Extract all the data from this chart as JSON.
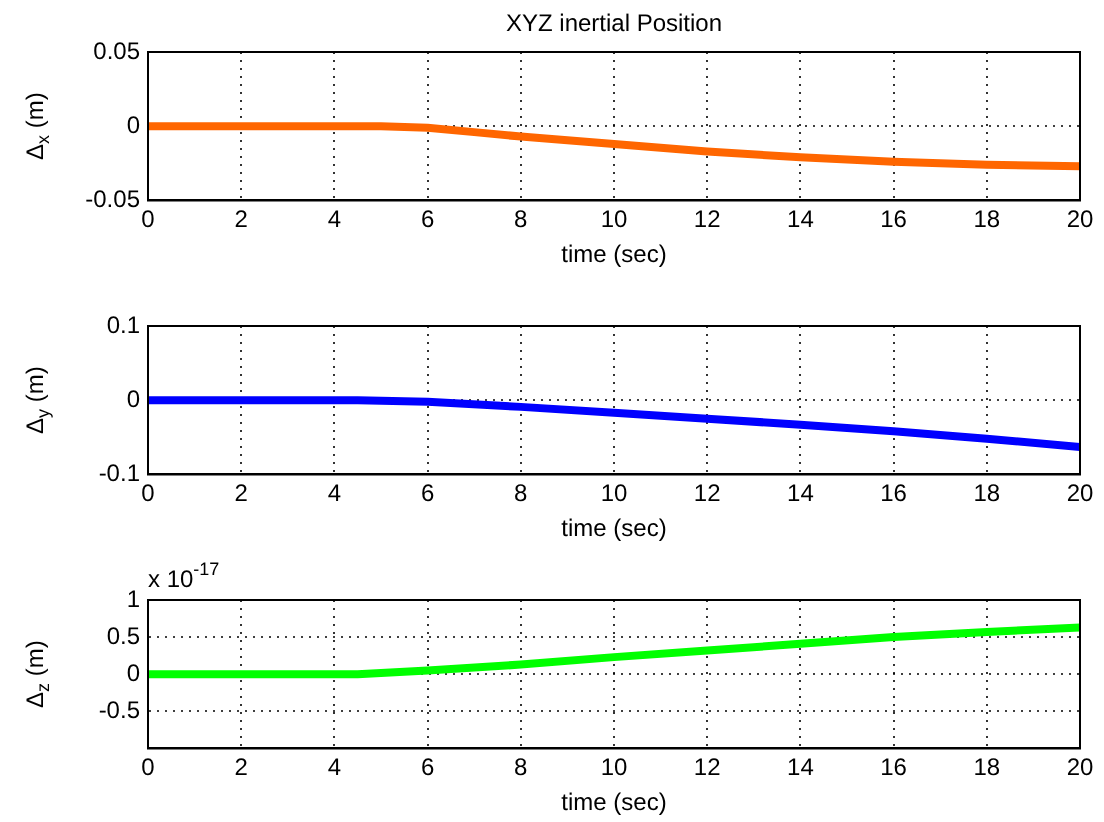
{
  "chart_data": [
    {
      "type": "line",
      "title": "XYZ inertial Position",
      "xlabel": "time (sec)",
      "ylabel": "Δ$_{x}$ (m)",
      "xlim": [
        0,
        20
      ],
      "xticks": [
        0,
        2,
        4,
        6,
        8,
        10,
        12,
        14,
        16,
        18,
        20
      ],
      "ylim": [
        -0.05,
        0.05
      ],
      "yticks": [
        -0.05,
        0,
        0.05
      ],
      "grid": true,
      "x": [
        0,
        2,
        4,
        5,
        6,
        7,
        8,
        10,
        12,
        14,
        16,
        18,
        20
      ],
      "series": [
        {
          "color": "#ff6600",
          "values": [
            0,
            0,
            0,
            0,
            -0.001,
            -0.004,
            -0.007,
            -0.012,
            -0.017,
            -0.021,
            -0.024,
            -0.026,
            -0.027
          ]
        }
      ]
    },
    {
      "type": "line",
      "xlabel": "time (sec)",
      "ylabel": "Δ$_{y}$ (m)",
      "xlim": [
        0,
        20
      ],
      "xticks": [
        0,
        2,
        4,
        6,
        8,
        10,
        12,
        14,
        16,
        18,
        20
      ],
      "ylim": [
        -0.1,
        0.1
      ],
      "yticks": [
        -0.1,
        0,
        0.1
      ],
      "grid": true,
      "x": [
        0,
        2,
        4,
        4.5,
        6,
        8,
        10,
        12,
        14,
        16,
        18,
        20
      ],
      "series": [
        {
          "color": "#0000ff",
          "values": [
            0,
            0,
            0,
            0,
            -0.002,
            -0.009,
            -0.017,
            -0.025,
            -0.033,
            -0.042,
            -0.052,
            -0.063
          ]
        }
      ]
    },
    {
      "type": "line",
      "xlabel": "time (sec)",
      "ylabel": "Δ$_{z}$ (m)",
      "annotations": [
        "x 10$^{-17}$"
      ],
      "xlim": [
        0,
        20
      ],
      "xticks": [
        0,
        2,
        4,
        6,
        8,
        10,
        12,
        14,
        16,
        18,
        20
      ],
      "ylim": [
        -1,
        1
      ],
      "yticks": [
        -0.5,
        0,
        0.5,
        1
      ],
      "grid": true,
      "x": [
        0,
        2,
        4,
        4.5,
        6,
        8,
        10,
        12,
        14,
        16,
        18,
        20
      ],
      "series": [
        {
          "color": "#00ff00",
          "values": [
            0,
            0,
            0,
            0,
            0.05,
            0.13,
            0.23,
            0.32,
            0.41,
            0.5,
            0.57,
            0.63
          ]
        }
      ]
    }
  ]
}
